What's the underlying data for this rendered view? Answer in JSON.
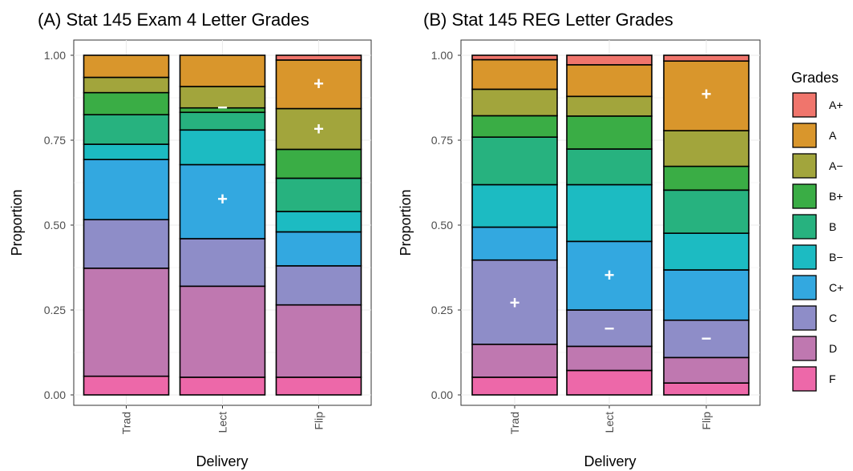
{
  "chart_data": [
    {
      "type": "bar",
      "stacked": true,
      "title": "(A) Stat 145 Exam 4 Letter Grades",
      "xlabel": "Delivery",
      "ylabel": "Proportion",
      "ylim": [
        0,
        1
      ],
      "yticks": [
        "0.00",
        "0.25",
        "0.50",
        "0.75",
        "1.00"
      ],
      "grid": true,
      "categories": [
        "Trad",
        "Lect",
        "Flip"
      ],
      "series": [
        {
          "name": "F",
          "values": [
            0.055,
            0.052,
            0.052
          ]
        },
        {
          "name": "D",
          "values": [
            0.318,
            0.268,
            0.213
          ]
        },
        {
          "name": "C",
          "values": [
            0.143,
            0.14,
            0.115
          ]
        },
        {
          "name": "C+",
          "values": [
            0.177,
            0.218,
            0.1
          ]
        },
        {
          "name": "B−",
          "values": [
            0.045,
            0.102,
            0.06
          ]
        },
        {
          "name": "B",
          "values": [
            0.087,
            0.052,
            0.098
          ]
        },
        {
          "name": "B+",
          "values": [
            0.065,
            0.013,
            0.085
          ]
        },
        {
          "name": "A−",
          "values": [
            0.045,
            0.063,
            0.12
          ]
        },
        {
          "name": "A",
          "values": [
            0.065,
            0.092,
            0.143
          ]
        },
        {
          "name": "A+",
          "values": [
            0.0,
            0.0,
            0.014
          ]
        }
      ],
      "annotations": [
        {
          "text": "−",
          "category": "Lect",
          "y": 0.845
        },
        {
          "text": "+",
          "category": "Lect",
          "y": 0.575
        },
        {
          "text": "+",
          "category": "Flip",
          "y": 0.915
        },
        {
          "text": "+",
          "category": "Flip",
          "y": 0.782
        }
      ]
    },
    {
      "type": "bar",
      "stacked": true,
      "title": "(B) Stat 145 REG Letter Grades",
      "xlabel": "Delivery",
      "ylabel": "Proportion",
      "ylim": [
        0,
        1
      ],
      "yticks": [
        "0.00",
        "0.25",
        "0.50",
        "0.75",
        "1.00"
      ],
      "grid": true,
      "categories": [
        "Trad",
        "Lect",
        "Flip"
      ],
      "series": [
        {
          "name": "F",
          "values": [
            0.052,
            0.072,
            0.035
          ]
        },
        {
          "name": "D",
          "values": [
            0.097,
            0.071,
            0.075
          ]
        },
        {
          "name": "C",
          "values": [
            0.248,
            0.107,
            0.11
          ]
        },
        {
          "name": "C+",
          "values": [
            0.097,
            0.202,
            0.148
          ]
        },
        {
          "name": "B−",
          "values": [
            0.125,
            0.167,
            0.108
          ]
        },
        {
          "name": "B",
          "values": [
            0.14,
            0.105,
            0.127
          ]
        },
        {
          "name": "B+",
          "values": [
            0.063,
            0.097,
            0.07
          ]
        },
        {
          "name": "A−",
          "values": [
            0.078,
            0.058,
            0.105
          ]
        },
        {
          "name": "A",
          "values": [
            0.087,
            0.093,
            0.205
          ]
        },
        {
          "name": "A+",
          "values": [
            0.013,
            0.028,
            0.017
          ]
        }
      ],
      "annotations": [
        {
          "text": "+",
          "category": "Trad",
          "y": 0.27
        },
        {
          "text": "+",
          "category": "Lect",
          "y": 0.352
        },
        {
          "text": "−",
          "category": "Lect",
          "y": 0.195
        },
        {
          "text": "+",
          "category": "Flip",
          "y": 0.885
        },
        {
          "text": "−",
          "category": "Flip",
          "y": 0.165
        }
      ]
    }
  ],
  "legend": {
    "title": "Grades",
    "position": "right",
    "items": [
      {
        "label": "A+",
        "color": "#F8766D"
      },
      {
        "label": "A",
        "color": "#D89000"
      },
      {
        "label": "A−",
        "color": "#A3A500"
      },
      {
        "label": "B+",
        "color": "#39B600"
      },
      {
        "label": "B",
        "color": "#00BF7D"
      },
      {
        "label": "B−",
        "color": "#00BFC4"
      },
      {
        "label": "C+",
        "color": "#00B0F6"
      },
      {
        "label": "C",
        "color": "#9590FF"
      },
      {
        "label": "D",
        "color": "#E76BF3"
      },
      {
        "label": "F",
        "color": "#FF62BC"
      }
    ]
  },
  "colors": {
    "F": "#ED68A9",
    "D": "#BF78B0",
    "C": "#8E8DC8",
    "C+": "#33A8E0",
    "B−": "#1CBBC2",
    "B": "#27B27F",
    "B+": "#3AAD45",
    "A−": "#A2A53C",
    "A": "#D9962C",
    "A+": "#F0756C"
  }
}
